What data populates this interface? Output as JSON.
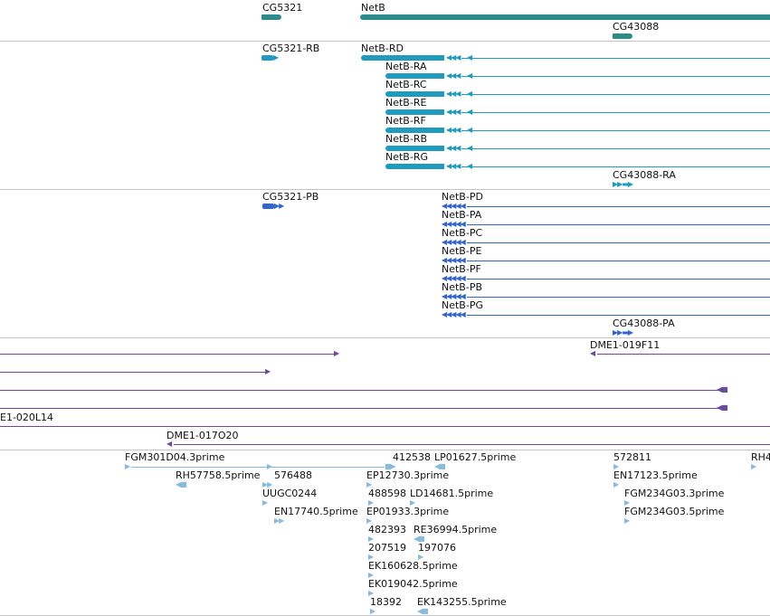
{
  "colors": {
    "gene": "#2e8b8b",
    "transcript": "#1e9bbf",
    "protein": "#3366cc",
    "clone": "#6a4a9a",
    "est": "#88bbdd",
    "divider": "#c6c6c6"
  },
  "genes": {
    "cg5321": "CG5321",
    "netb": "NetB",
    "cg43088": "CG43088"
  },
  "transcripts": {
    "cg5321_rb": "CG5321-RB",
    "netb_rd": "NetB-RD",
    "netb_ra": "NetB-RA",
    "netb_rc": "NetB-RC",
    "netb_re": "NetB-RE",
    "netb_rf": "NetB-RF",
    "netb_rb": "NetB-RB",
    "netb_rg": "NetB-RG",
    "cg43088_ra": "CG43088-RA"
  },
  "proteins": {
    "cg5321_pb": "CG5321-PB",
    "netb_pd": "NetB-PD",
    "netb_pa": "NetB-PA",
    "netb_pc": "NetB-PC",
    "netb_pe": "NetB-PE",
    "netb_pf": "NetB-PF",
    "netb_pb": "NetB-PB",
    "netb_pg": "NetB-PG",
    "cg43088_pa": "CG43088-PA"
  },
  "clones": {
    "dme1_019f11": "DME1-019F11",
    "e1_020l14": "E1-020L14",
    "dme1_017o20": "DME1-017O20"
  },
  "ests": {
    "fgm301d04": "FGM301D04.3prime",
    "e412538": "412538",
    "lp01627": "LP01627.5prime",
    "e572811": "572811",
    "rh4": "RH4",
    "rh57758": "RH57758.5prime",
    "e576488": "576488",
    "ep12730": "EP12730.3prime",
    "en17123": "EN17123.5prime",
    "uugc0244": "UUGC0244",
    "e488598": "488598",
    "ld14681": "LD14681.5prime",
    "fgm234g03_3": "FGM234G03.3prime",
    "en17740": "EN17740.5prime",
    "ep01933": "EP01933.3prime",
    "fgm234g03_5": "FGM234G03.5prime",
    "e482393": "482393",
    "re36994": "RE36994.5prime",
    "e207519": "207519",
    "e197076": "197076",
    "ek160628": "EK160628.5prime",
    "ek019042": "EK019042.5prime",
    "e18392": "18392",
    "ek143255": "EK143255.5prime"
  }
}
